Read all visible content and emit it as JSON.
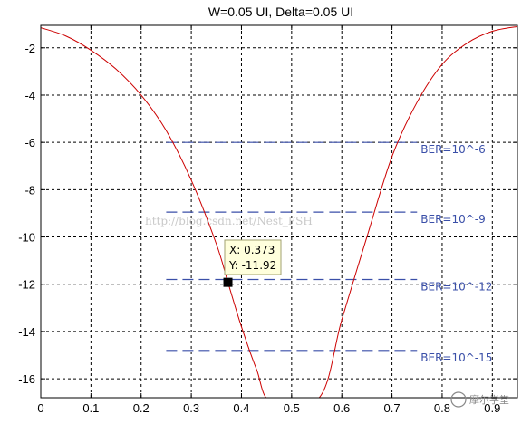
{
  "chart_data": {
    "type": "line",
    "title": "W=0.05 UI, Delta=0.05 UI",
    "xlabel": "",
    "ylabel": "",
    "xlim": [
      0,
      0.95
    ],
    "ylim": [
      -16.8,
      -1.05
    ],
    "grid": true,
    "xticks": [
      0,
      0.1,
      0.2,
      0.3,
      0.4,
      0.5,
      0.6,
      0.7,
      0.8,
      0.9
    ],
    "xtick_labels": [
      "0",
      "0.1",
      "0.2",
      "0.3",
      "0.4",
      "0.5",
      "0.6",
      "0.7",
      "0.8",
      "0.9"
    ],
    "yticks": [
      -2,
      -4,
      -6,
      -8,
      -10,
      -12,
      -14,
      -16
    ],
    "ytick_labels": [
      "-2",
      "-4",
      "-6",
      "-8",
      "-10",
      "-12",
      "-14",
      "-16"
    ],
    "series": [
      {
        "color": "#cc0000",
        "x": [
          0,
          0.05,
          0.1,
          0.15,
          0.2,
          0.25,
          0.3,
          0.35,
          0.373,
          0.4,
          0.43,
          0.46,
          0.555,
          0.6,
          0.65,
          0.7,
          0.75,
          0.8,
          0.85,
          0.9,
          0.95
        ],
        "y": [
          -1.15,
          -1.5,
          -2.1,
          -2.9,
          -4.0,
          -5.5,
          -7.6,
          -10.3,
          -11.92,
          -13.8,
          -15.6,
          -17.0,
          -16.8,
          -13.5,
          -10.0,
          -6.6,
          -4.3,
          -2.7,
          -1.8,
          -1.3,
          -1.1
        ]
      }
    ],
    "reference_lines": [
      {
        "label": "BER=10^-6",
        "y": -6.0,
        "x_start": 0.25,
        "x_end": 0.75
      },
      {
        "label": "BER=10^-9",
        "y": -8.95,
        "x_start": 0.25,
        "x_end": 0.75
      },
      {
        "label": "BER=10^-12",
        "y": -11.8,
        "x_start": 0.25,
        "x_end": 0.75
      },
      {
        "label": "BER=10^-15",
        "y": -14.8,
        "x_start": 0.25,
        "x_end": 0.75
      }
    ],
    "datatip": {
      "x": 0.373,
      "y": -11.92,
      "x_label": "X: 0.373",
      "y_label": "Y: -11.92"
    },
    "watermark": "http://blog.csdn.net/Nest_FSH",
    "logo_text": "摩尔学堂"
  }
}
